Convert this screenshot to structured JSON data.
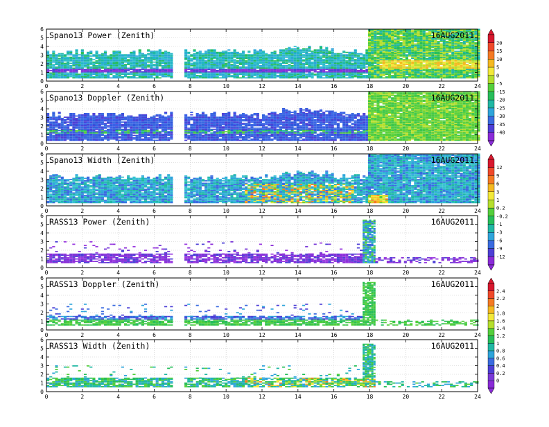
{
  "chart_data": [
    {
      "type": "heatmap",
      "title": "Spano13 Power (Zenith)",
      "date": "16AUG2011",
      "x_ticks": [
        0,
        2,
        4,
        6,
        8,
        10,
        12,
        14,
        16,
        18,
        20,
        22,
        24
      ],
      "y_ticks": [
        0,
        1,
        2,
        3,
        4,
        5,
        6
      ],
      "xlim": [
        0,
        24
      ],
      "ylim": [
        0,
        6
      ],
      "data_gaps": [
        [
          6.9,
          7.6
        ]
      ],
      "low_regime": {
        "x": [
          0,
          17.9
        ],
        "top_height": 3.3
      },
      "high_regime": {
        "x": [
          17.9,
          24
        ],
        "top_height": 6
      },
      "colorbar": "bar1"
    },
    {
      "type": "heatmap",
      "title": "Spano13 Doppler (Zenith)",
      "date": "16AUG2011",
      "x_ticks": [
        0,
        2,
        4,
        6,
        8,
        10,
        12,
        14,
        16,
        18,
        20,
        22,
        24
      ],
      "y_ticks": [
        0,
        1,
        2,
        3,
        4,
        5,
        6
      ],
      "xlim": [
        0,
        24
      ],
      "ylim": [
        0,
        6
      ],
      "data_gaps": [
        [
          6.9,
          7.6
        ]
      ],
      "low_regime": {
        "x": [
          0,
          17.9
        ],
        "top_height": 3.3
      },
      "high_regime": {
        "x": [
          17.9,
          24
        ],
        "top_height": 6
      },
      "colorbar": "bar1"
    },
    {
      "type": "heatmap",
      "title": "Spano13 Width (Zenith)",
      "date": "16AUG2011",
      "x_ticks": [
        0,
        2,
        4,
        6,
        8,
        10,
        12,
        14,
        16,
        18,
        20,
        22,
        24
      ],
      "y_ticks": [
        0,
        1,
        2,
        3,
        4,
        5,
        6
      ],
      "xlim": [
        0,
        24
      ],
      "ylim": [
        0,
        6
      ],
      "data_gaps": [
        [
          6.9,
          7.6
        ]
      ],
      "low_regime": {
        "x": [
          0,
          17.9
        ],
        "top_height": 3.3
      },
      "high_regime": {
        "x": [
          17.9,
          24
        ],
        "top_height": 6
      },
      "colorbar": "bar2"
    },
    {
      "type": "heatmap",
      "title": "RASS13 Power (Zenith)",
      "date": "16AUG2011",
      "x_ticks": [
        0,
        2,
        4,
        6,
        8,
        10,
        12,
        14,
        16,
        18,
        20,
        22,
        24
      ],
      "y_ticks": [
        0,
        1,
        2,
        3,
        4,
        5,
        6
      ],
      "xlim": [
        0,
        24
      ],
      "ylim": [
        0,
        6
      ],
      "data_gaps": [
        [
          6.9,
          7.6
        ]
      ],
      "main_band": {
        "x": [
          0,
          17.5
        ],
        "height": [
          0.5,
          1.5
        ]
      },
      "burst": {
        "x": [
          17.6,
          18.3
        ],
        "height": [
          0.5,
          5.5
        ]
      },
      "late_band": {
        "x": [
          18.3,
          24
        ],
        "height": [
          0.5,
          1.2
        ]
      },
      "colorbar": "bar2"
    },
    {
      "type": "heatmap",
      "title": "RASS13 Doppler (Zenith)",
      "date": "16AUG2011",
      "x_ticks": [
        0,
        2,
        4,
        6,
        8,
        10,
        12,
        14,
        16,
        18,
        20,
        22,
        24
      ],
      "y_ticks": [
        0,
        1,
        2,
        3,
        4,
        5,
        6
      ],
      "xlim": [
        0,
        24
      ],
      "ylim": [
        0,
        6
      ],
      "data_gaps": [
        [
          6.9,
          7.6
        ]
      ],
      "main_band": {
        "x": [
          0,
          17.5
        ],
        "height": [
          0.5,
          1.5
        ]
      },
      "burst": {
        "x": [
          17.6,
          18.3
        ],
        "height": [
          0.5,
          5.5
        ]
      },
      "late_band": {
        "x": [
          18.3,
          24
        ],
        "height": [
          0.5,
          1.2
        ]
      },
      "colorbar": "bar3"
    },
    {
      "type": "heatmap",
      "title": "RASS13 Width (Zenith)",
      "date": "16AUG2011",
      "x_ticks": [
        0,
        2,
        4,
        6,
        8,
        10,
        12,
        14,
        16,
        18,
        20,
        22,
        24
      ],
      "y_ticks": [
        0,
        1,
        2,
        3,
        4,
        5,
        6
      ],
      "xlim": [
        0,
        24
      ],
      "ylim": [
        0,
        6
      ],
      "data_gaps": [
        [
          6.9,
          7.6
        ]
      ],
      "main_band": {
        "x": [
          0,
          17.5
        ],
        "height": [
          0.5,
          1.5
        ]
      },
      "burst": {
        "x": [
          17.6,
          18.3
        ],
        "height": [
          0.5,
          5.5
        ]
      },
      "late_band": {
        "x": [
          18.3,
          24
        ],
        "height": [
          0.5,
          1.2
        ]
      },
      "colorbar": "bar3"
    }
  ],
  "colorbars": {
    "bar1": {
      "labels": [
        "20",
        "15",
        "10",
        "5",
        "0",
        "-5",
        "-15",
        "-20",
        "-25",
        "-30",
        "-35",
        "-40"
      ],
      "colors": [
        "#d8182e",
        "#f0492a",
        "#f57a24",
        "#f5b921",
        "#f3e93a",
        "#b6df2e",
        "#54cf3c",
        "#27be5a",
        "#20b8a4",
        "#2fa5db",
        "#3a6be0",
        "#4d3fd6",
        "#8a2bd8"
      ]
    },
    "bar2": {
      "labels": [
        "12",
        "9",
        "6",
        "3",
        "1",
        "0.2",
        "-0.2",
        "-1",
        "-3",
        "-6",
        "-9",
        "-12"
      ],
      "colors": [
        "#d8182e",
        "#f0492a",
        "#f57a24",
        "#f5b921",
        "#f3e93a",
        "#b6df2e",
        "#54cf3c",
        "#27be5a",
        "#20b8a4",
        "#2fa5db",
        "#3a6be0",
        "#4d3fd6",
        "#8a2bd8"
      ]
    },
    "bar3": {
      "labels": [
        "2.4",
        "2.2",
        "2",
        "1.8",
        "1.6",
        "1.4",
        "1.2",
        "1",
        "0.8",
        "0.6",
        "0.4",
        "0.2",
        "0"
      ],
      "colors": [
        "#d8182e",
        "#f0492a",
        "#f57a24",
        "#f5b921",
        "#f3e93a",
        "#b6df2e",
        "#54cf3c",
        "#27be5a",
        "#20b8a4",
        "#2fa5db",
        "#3a6be0",
        "#4d3fd6",
        "#7a3ad8",
        "#8a2bd8"
      ]
    }
  }
}
